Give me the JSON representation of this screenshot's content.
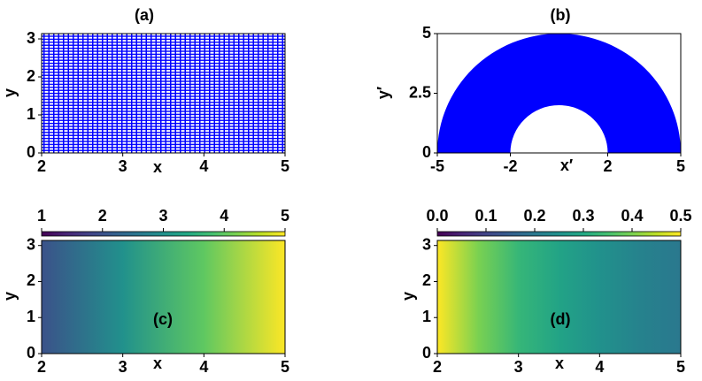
{
  "chart_data": [
    {
      "type": "mesh",
      "title": "(a)",
      "x_label": "x",
      "y_label": "y",
      "color": "#0000ff",
      "xlim": [
        2,
        5
      ],
      "xticks": [
        2,
        3,
        4,
        5
      ],
      "ylim": [
        0,
        3.14
      ],
      "yticks": [
        0,
        1,
        2,
        3
      ]
    },
    {
      "type": "annulus",
      "title": "(b)",
      "x_label": "x′",
      "y_label": "y′",
      "color": "#0000ff",
      "inner_radius": 2,
      "outer_radius": 5,
      "xlim": [
        -5,
        5
      ],
      "xticks": [
        -5,
        -2,
        2,
        5
      ],
      "ylim": [
        0,
        5
      ],
      "yticks": [
        0,
        2.5,
        5
      ]
    },
    {
      "type": "heatmap",
      "title": "(c)",
      "x_label": "x",
      "y_label": "y",
      "colormap": "viridis",
      "x": [
        2,
        3,
        4,
        5
      ],
      "values": [
        2,
        3,
        4,
        5
      ],
      "clim": [
        1,
        5
      ],
      "cticks": [
        1,
        2,
        3,
        4,
        5
      ],
      "xlim": [
        2,
        5
      ],
      "xticks": [
        2,
        3,
        4,
        5
      ],
      "ylim": [
        0,
        3.14
      ],
      "yticks": [
        0,
        1,
        2,
        3
      ]
    },
    {
      "type": "heatmap",
      "title": "(d)",
      "x_label": "x",
      "y_label": "y",
      "colormap": "viridis",
      "x": [
        2,
        2.5,
        3,
        3.5,
        4,
        4.5,
        5
      ],
      "values": [
        0.5,
        0.4,
        0.33,
        0.29,
        0.25,
        0.22,
        0.2
      ],
      "clim": [
        0,
        0.5
      ],
      "cticks": [
        {
          "value": 0,
          "label": "0.0"
        },
        0.1,
        0.2,
        0.3,
        0.4,
        0.5
      ],
      "xlim": [
        2,
        5
      ],
      "xticks": [
        2,
        3,
        4,
        5
      ],
      "ylim": [
        0,
        3.14
      ],
      "yticks": [
        0,
        1,
        2,
        3
      ]
    }
  ]
}
